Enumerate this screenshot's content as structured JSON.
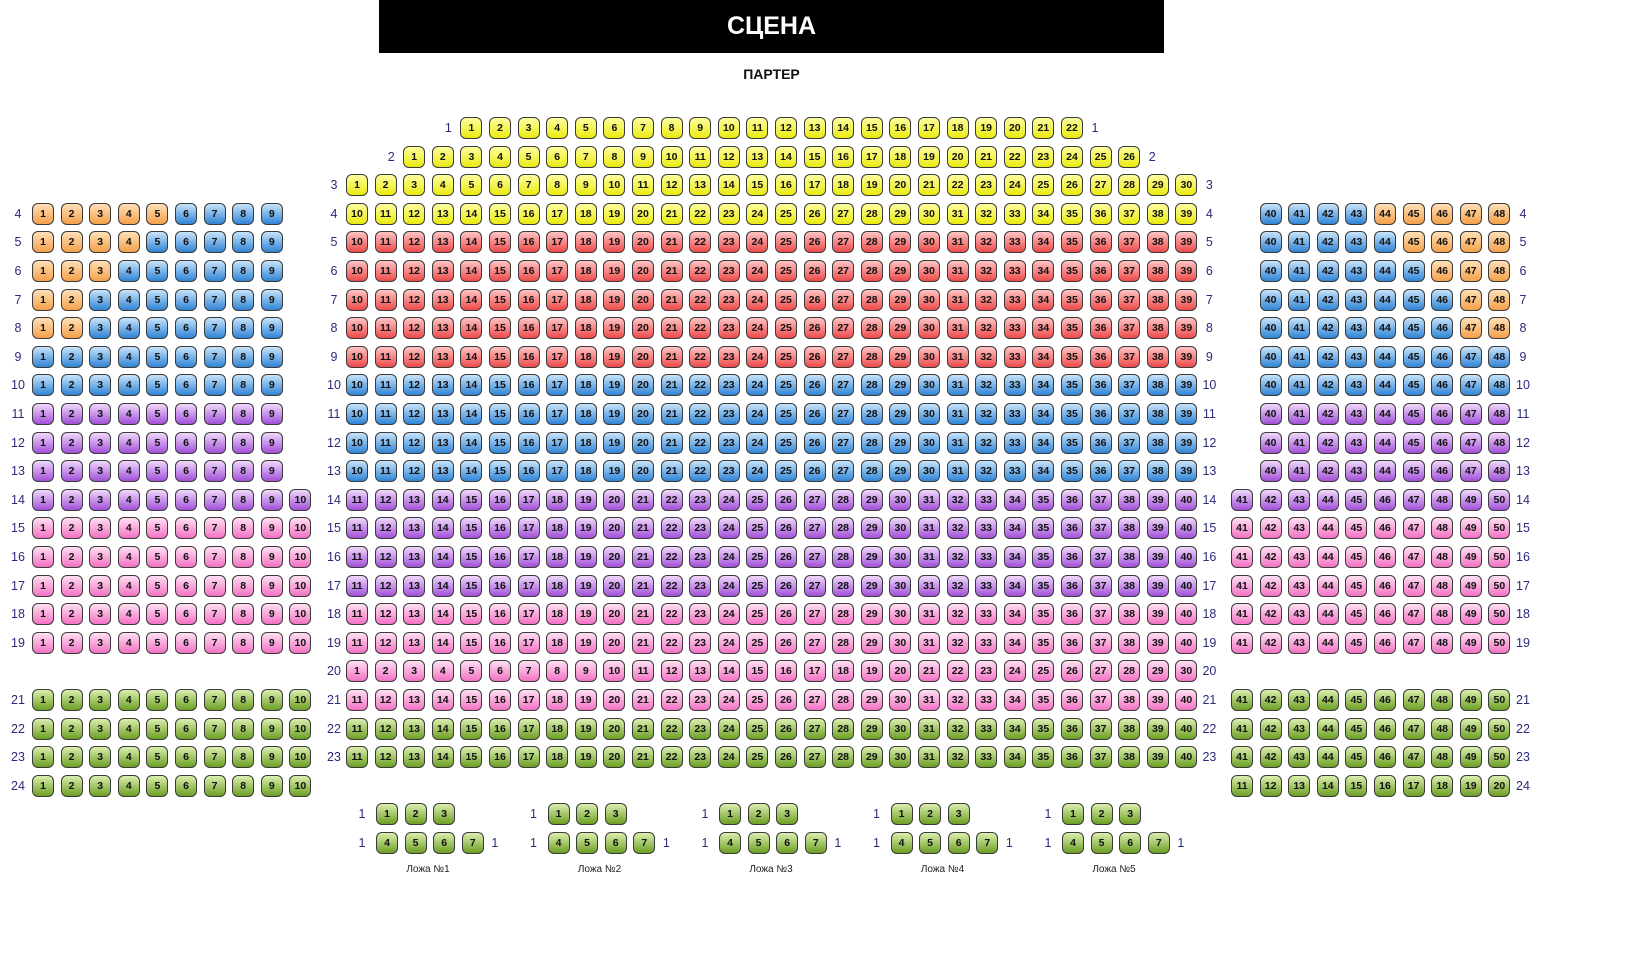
{
  "stage": {
    "label": "СЦЕНА"
  },
  "hall": {
    "label": "ПАРТЕР"
  },
  "palette": {
    "yellow": [
      "#ffffa0",
      "#eaea10"
    ],
    "orange": [
      "#ffe0b8",
      "#f5a04a"
    ],
    "red": [
      "#ffc4c4",
      "#ee4a4a"
    ],
    "blue": [
      "#c8e4fa",
      "#2f84d6"
    ],
    "purple": [
      "#efd8fb",
      "#a250d8"
    ],
    "pink": [
      "#ffe0f2",
      "#f372c4"
    ],
    "green": [
      "#dcefb0",
      "#6c9f22"
    ]
  },
  "sections": {
    "left": [
      {
        "row": "4",
        "from": 1,
        "to": 9,
        "zones": [
          [
            "orange",
            1,
            5
          ],
          [
            "blue",
            6,
            9
          ]
        ]
      },
      {
        "row": "5",
        "from": 1,
        "to": 9,
        "zones": [
          [
            "orange",
            1,
            4
          ],
          [
            "blue",
            5,
            9
          ]
        ]
      },
      {
        "row": "6",
        "from": 1,
        "to": 9,
        "zones": [
          [
            "orange",
            1,
            3
          ],
          [
            "blue",
            4,
            9
          ]
        ]
      },
      {
        "row": "7",
        "from": 1,
        "to": 9,
        "zones": [
          [
            "orange",
            1,
            2
          ],
          [
            "blue",
            3,
            9
          ]
        ]
      },
      {
        "row": "8",
        "from": 1,
        "to": 9,
        "zones": [
          [
            "orange",
            1,
            2
          ],
          [
            "blue",
            3,
            9
          ]
        ]
      },
      {
        "row": "9",
        "from": 1,
        "to": 9,
        "zones": [
          [
            "blue",
            1,
            9
          ]
        ]
      },
      {
        "row": "10",
        "from": 1,
        "to": 9,
        "zones": [
          [
            "blue",
            1,
            9
          ]
        ]
      },
      {
        "row": "11",
        "from": 1,
        "to": 9,
        "zones": [
          [
            "purple",
            1,
            9
          ]
        ]
      },
      {
        "row": "12",
        "from": 1,
        "to": 9,
        "zones": [
          [
            "purple",
            1,
            9
          ]
        ]
      },
      {
        "row": "13",
        "from": 1,
        "to": 9,
        "zones": [
          [
            "purple",
            1,
            9
          ]
        ]
      },
      {
        "row": "14",
        "from": 1,
        "to": 10,
        "zones": [
          [
            "purple",
            1,
            10
          ]
        ]
      },
      {
        "row": "15",
        "from": 1,
        "to": 10,
        "zones": [
          [
            "pink",
            1,
            10
          ]
        ]
      },
      {
        "row": "16",
        "from": 1,
        "to": 10,
        "zones": [
          [
            "pink",
            1,
            10
          ]
        ]
      },
      {
        "row": "17",
        "from": 1,
        "to": 10,
        "zones": [
          [
            "pink",
            1,
            10
          ]
        ]
      },
      {
        "row": "18",
        "from": 1,
        "to": 10,
        "zones": [
          [
            "pink",
            1,
            10
          ]
        ]
      },
      {
        "row": "19",
        "from": 1,
        "to": 10,
        "zones": [
          [
            "pink",
            1,
            10
          ]
        ]
      },
      {
        "row": "21",
        "from": 1,
        "to": 10,
        "zones": [
          [
            "green",
            1,
            10
          ]
        ]
      },
      {
        "row": "22",
        "from": 1,
        "to": 10,
        "zones": [
          [
            "green",
            1,
            10
          ]
        ]
      },
      {
        "row": "23",
        "from": 1,
        "to": 10,
        "zones": [
          [
            "green",
            1,
            10
          ]
        ]
      },
      {
        "row": "24",
        "from": 1,
        "to": 10,
        "zones": [
          [
            "green",
            1,
            10
          ]
        ]
      }
    ],
    "center": [
      {
        "row": "1",
        "from": 1,
        "to": 22,
        "zones": [
          [
            "yellow",
            1,
            22
          ]
        ]
      },
      {
        "row": "2",
        "from": 1,
        "to": 26,
        "zones": [
          [
            "yellow",
            1,
            26
          ]
        ]
      },
      {
        "row": "3",
        "from": 1,
        "to": 30,
        "zones": [
          [
            "yellow",
            1,
            30
          ]
        ]
      },
      {
        "row": "4",
        "from": 10,
        "to": 39,
        "zones": [
          [
            "yellow",
            10,
            39
          ]
        ]
      },
      {
        "row": "5",
        "from": 10,
        "to": 39,
        "zones": [
          [
            "red",
            10,
            39
          ]
        ]
      },
      {
        "row": "6",
        "from": 10,
        "to": 39,
        "zones": [
          [
            "red",
            10,
            39
          ]
        ]
      },
      {
        "row": "7",
        "from": 10,
        "to": 39,
        "zones": [
          [
            "red",
            10,
            39
          ]
        ]
      },
      {
        "row": "8",
        "from": 10,
        "to": 39,
        "zones": [
          [
            "red",
            10,
            39
          ]
        ]
      },
      {
        "row": "9",
        "from": 10,
        "to": 39,
        "zones": [
          [
            "red",
            10,
            39
          ]
        ]
      },
      {
        "row": "10",
        "from": 10,
        "to": 39,
        "zones": [
          [
            "blue",
            10,
            39
          ]
        ]
      },
      {
        "row": "11",
        "from": 10,
        "to": 39,
        "zones": [
          [
            "blue",
            10,
            39
          ]
        ]
      },
      {
        "row": "12",
        "from": 10,
        "to": 39,
        "zones": [
          [
            "blue",
            10,
            39
          ]
        ]
      },
      {
        "row": "13",
        "from": 10,
        "to": 39,
        "zones": [
          [
            "blue",
            10,
            39
          ]
        ]
      },
      {
        "row": "14",
        "from": 11,
        "to": 40,
        "zones": [
          [
            "purple",
            11,
            40
          ]
        ]
      },
      {
        "row": "15",
        "from": 11,
        "to": 40,
        "zones": [
          [
            "purple",
            11,
            40
          ]
        ]
      },
      {
        "row": "16",
        "from": 11,
        "to": 40,
        "zones": [
          [
            "purple",
            11,
            40
          ]
        ]
      },
      {
        "row": "17",
        "from": 11,
        "to": 40,
        "zones": [
          [
            "purple",
            11,
            40
          ]
        ]
      },
      {
        "row": "18",
        "from": 11,
        "to": 40,
        "zones": [
          [
            "pink",
            11,
            40
          ]
        ]
      },
      {
        "row": "19",
        "from": 11,
        "to": 40,
        "zones": [
          [
            "pink",
            11,
            40
          ]
        ]
      },
      {
        "row": "20",
        "from": 1,
        "to": 30,
        "zones": [
          [
            "pink",
            1,
            30
          ]
        ]
      },
      {
        "row": "21",
        "from": 11,
        "to": 40,
        "zones": [
          [
            "pink",
            11,
            40
          ]
        ]
      },
      {
        "row": "22",
        "from": 11,
        "to": 40,
        "zones": [
          [
            "green",
            11,
            40
          ]
        ]
      },
      {
        "row": "23",
        "from": 11,
        "to": 40,
        "zones": [
          [
            "green",
            11,
            40
          ]
        ]
      }
    ],
    "right": [
      {
        "row": "4",
        "from": 40,
        "to": 48,
        "zones": [
          [
            "blue",
            40,
            43
          ],
          [
            "orange",
            44,
            48
          ]
        ]
      },
      {
        "row": "5",
        "from": 40,
        "to": 48,
        "zones": [
          [
            "blue",
            40,
            44
          ],
          [
            "orange",
            45,
            48
          ]
        ]
      },
      {
        "row": "6",
        "from": 40,
        "to": 48,
        "zones": [
          [
            "blue",
            40,
            45
          ],
          [
            "orange",
            46,
            48
          ]
        ]
      },
      {
        "row": "7",
        "from": 40,
        "to": 48,
        "zones": [
          [
            "blue",
            40,
            46
          ],
          [
            "orange",
            47,
            48
          ]
        ]
      },
      {
        "row": "8",
        "from": 40,
        "to": 48,
        "zones": [
          [
            "blue",
            40,
            46
          ],
          [
            "orange",
            47,
            48
          ]
        ]
      },
      {
        "row": "9",
        "from": 40,
        "to": 48,
        "zones": [
          [
            "blue",
            40,
            48
          ]
        ]
      },
      {
        "row": "10",
        "from": 40,
        "to": 48,
        "zones": [
          [
            "blue",
            40,
            48
          ]
        ]
      },
      {
        "row": "11",
        "from": 40,
        "to": 48,
        "zones": [
          [
            "purple",
            40,
            48
          ]
        ]
      },
      {
        "row": "12",
        "from": 40,
        "to": 48,
        "zones": [
          [
            "purple",
            40,
            48
          ]
        ]
      },
      {
        "row": "13",
        "from": 40,
        "to": 48,
        "zones": [
          [
            "purple",
            40,
            48
          ]
        ]
      },
      {
        "row": "14",
        "from": 41,
        "to": 50,
        "zones": [
          [
            "purple",
            41,
            50
          ]
        ]
      },
      {
        "row": "15",
        "from": 41,
        "to": 50,
        "zones": [
          [
            "pink",
            41,
            50
          ]
        ]
      },
      {
        "row": "16",
        "from": 41,
        "to": 50,
        "zones": [
          [
            "pink",
            41,
            50
          ]
        ]
      },
      {
        "row": "17",
        "from": 41,
        "to": 50,
        "zones": [
          [
            "pink",
            41,
            50
          ]
        ]
      },
      {
        "row": "18",
        "from": 41,
        "to": 50,
        "zones": [
          [
            "pink",
            41,
            50
          ]
        ]
      },
      {
        "row": "19",
        "from": 41,
        "to": 50,
        "zones": [
          [
            "pink",
            41,
            50
          ]
        ]
      },
      {
        "row": "21",
        "from": 41,
        "to": 50,
        "zones": [
          [
            "green",
            41,
            50
          ]
        ]
      },
      {
        "row": "22",
        "from": 41,
        "to": 50,
        "zones": [
          [
            "green",
            41,
            50
          ]
        ]
      },
      {
        "row": "23",
        "from": 41,
        "to": 50,
        "zones": [
          [
            "green",
            41,
            50
          ]
        ]
      },
      {
        "row": "24",
        "from": 11,
        "to": 20,
        "zones": [
          [
            "green",
            11,
            20
          ]
        ]
      }
    ]
  },
  "lodges": [
    {
      "label": "Ложа №1",
      "rows": [
        {
          "row": "1",
          "from": 1,
          "to": 3,
          "right_label": false
        },
        {
          "row": "1",
          "from": 4,
          "to": 7,
          "right_label": true
        }
      ],
      "color": "green"
    },
    {
      "label": "Ложа №2",
      "rows": [
        {
          "row": "1",
          "from": 1,
          "to": 3,
          "right_label": false
        },
        {
          "row": "1",
          "from": 4,
          "to": 7,
          "right_label": true
        }
      ],
      "color": "green"
    },
    {
      "label": "Ложа №3",
      "rows": [
        {
          "row": "1",
          "from": 1,
          "to": 3,
          "right_label": false
        },
        {
          "row": "1",
          "from": 4,
          "to": 7,
          "right_label": true
        }
      ],
      "color": "green"
    },
    {
      "label": "Ложа №4",
      "rows": [
        {
          "row": "1",
          "from": 1,
          "to": 3,
          "right_label": false
        },
        {
          "row": "1",
          "from": 4,
          "to": 7,
          "right_label": true
        }
      ],
      "color": "green"
    },
    {
      "label": "Ложа №5",
      "rows": [
        {
          "row": "1",
          "from": 1,
          "to": 3,
          "right_label": false
        },
        {
          "row": "1",
          "from": 4,
          "to": 7,
          "right_label": true
        }
      ],
      "color": "green"
    }
  ]
}
